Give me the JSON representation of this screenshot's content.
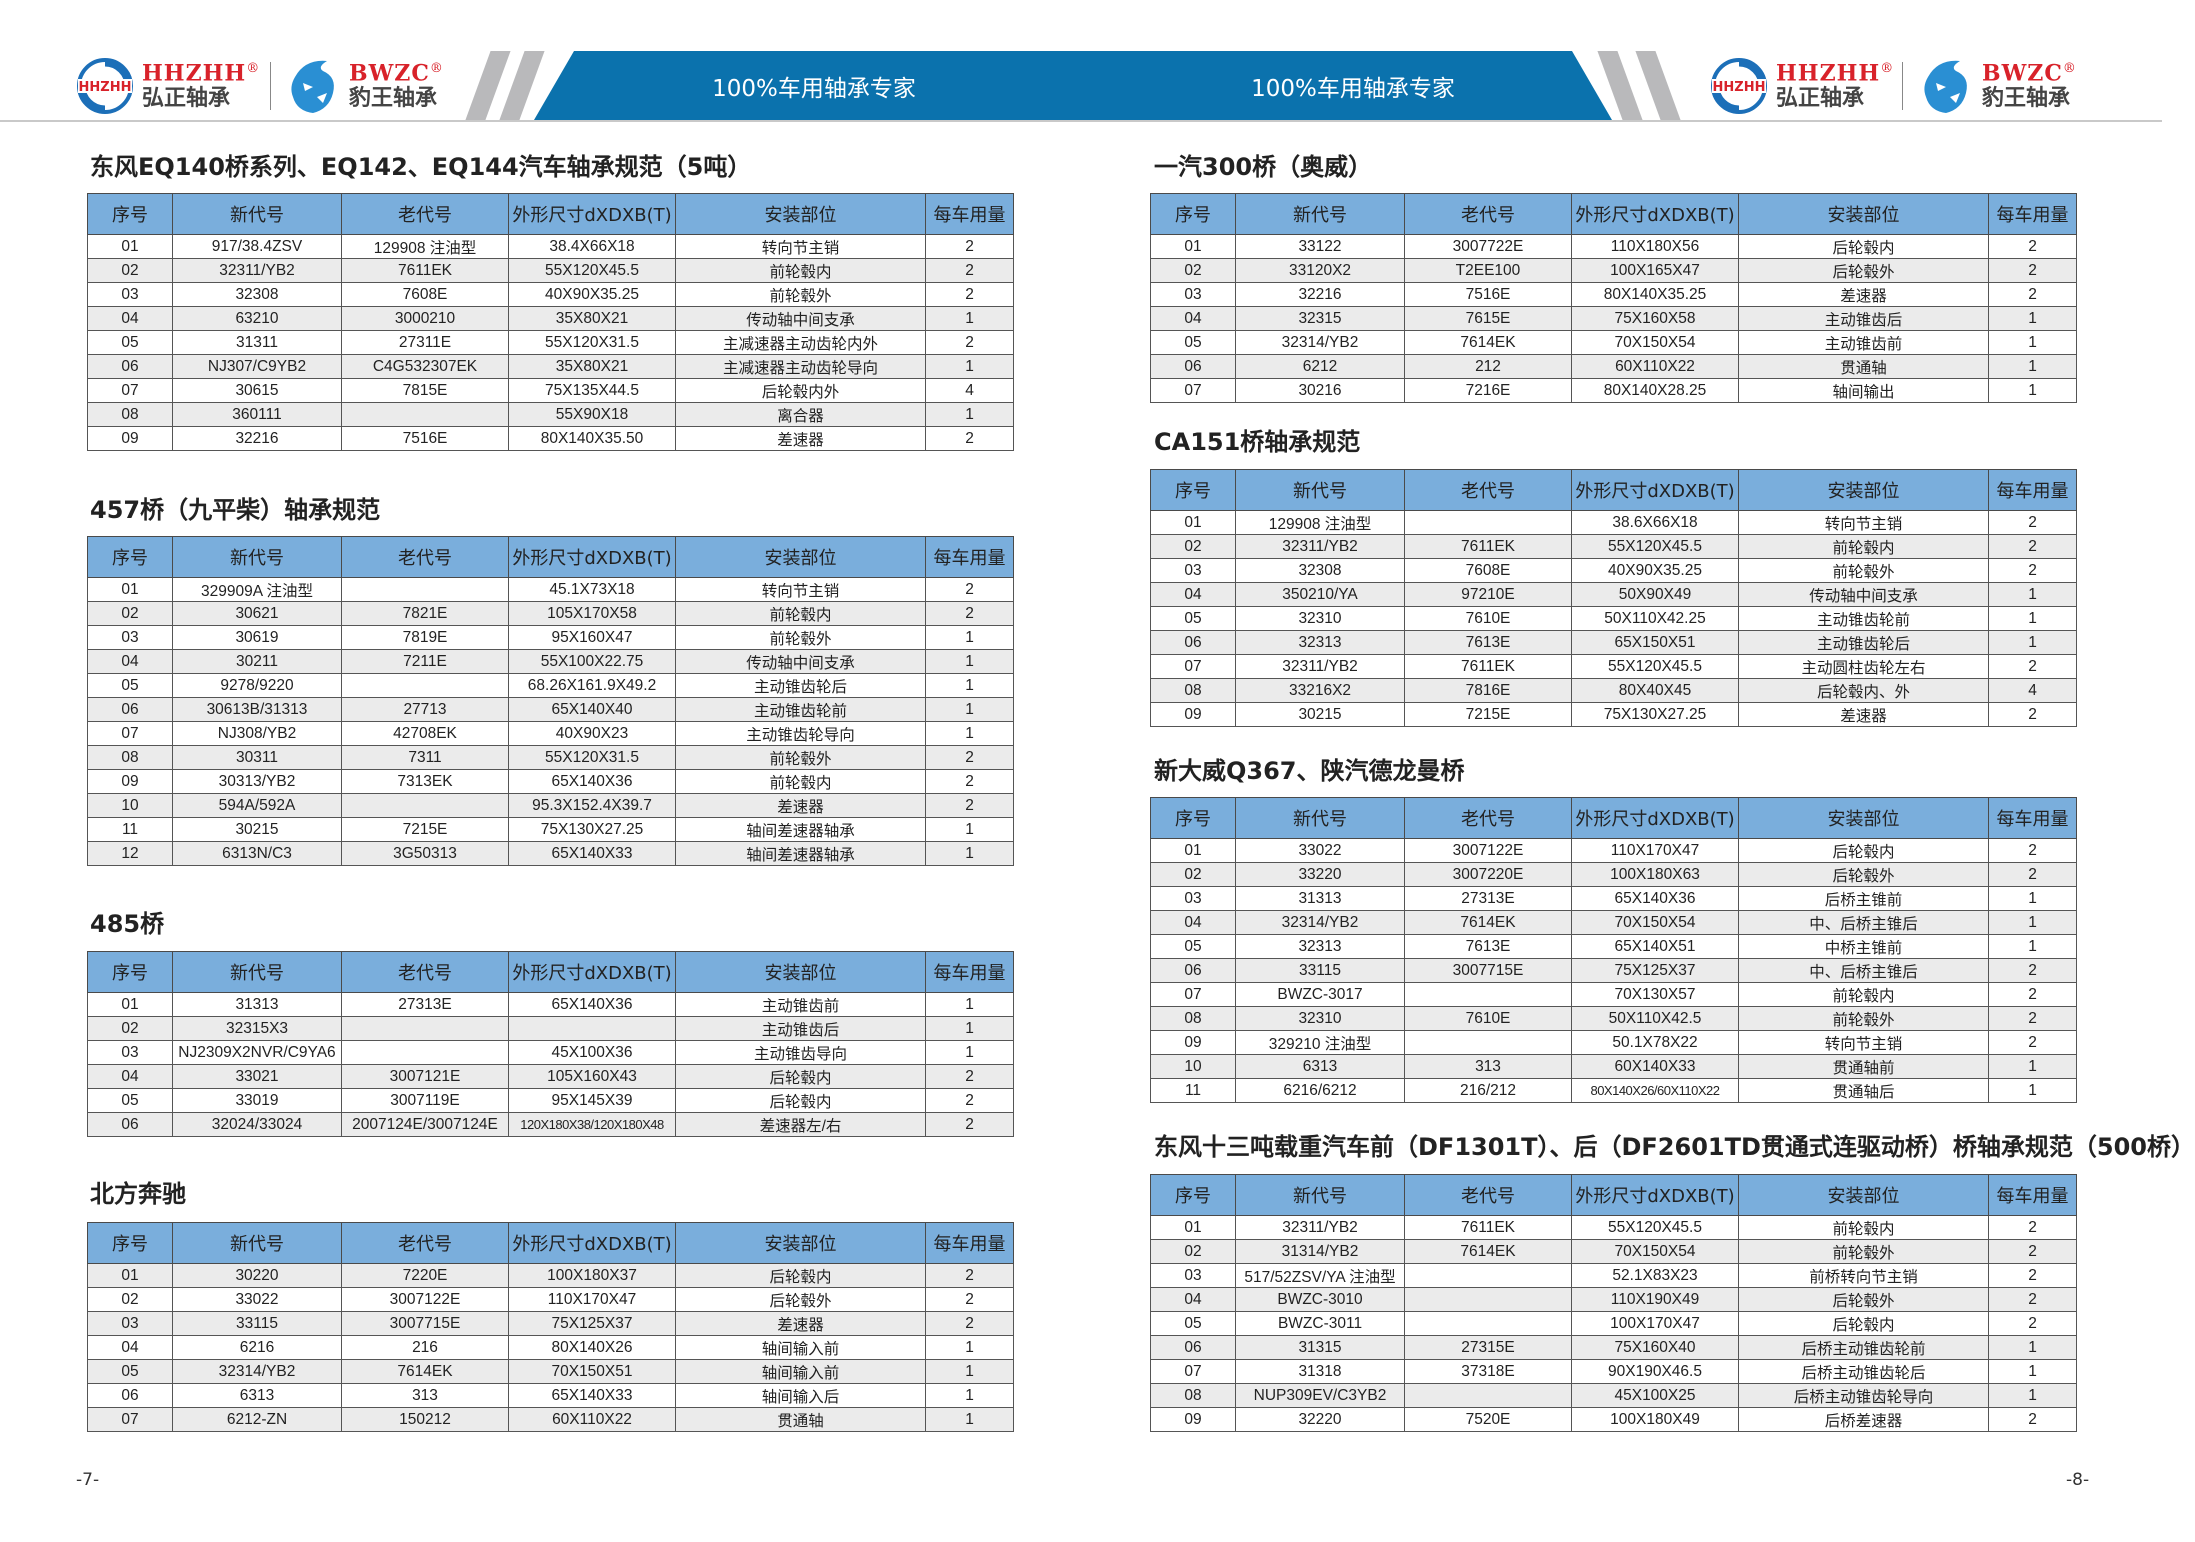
{
  "header": {
    "slogan": "100%车用轴承专家",
    "brand1_en": "HHZHH",
    "brand1_cn": "弘正轴承",
    "brand2_en": "BWZC",
    "brand2_cn": "豹王轴承",
    "registered": "®",
    "accent_color": "#0b72ad",
    "brand_red": "#d8222a"
  },
  "columns": [
    "序号",
    "新代号",
    "老代号",
    "外形尺寸dXDXB(T)",
    "安装部位",
    "每车用量"
  ],
  "left_sections": [
    {
      "title": "东风EQ140桥系列、EQ142、EQ144汽车轴承规范（5吨）",
      "rows": [
        [
          "01",
          "917/38.4ZSV",
          "129908 注油型",
          "38.4X66X18",
          "转向节主销",
          "2"
        ],
        [
          "02",
          "32311/YB2",
          "7611EK",
          "55X120X45.5",
          "前轮毂内",
          "2"
        ],
        [
          "03",
          "32308",
          "7608E",
          "40X90X35.25",
          "前轮毂外",
          "2"
        ],
        [
          "04",
          "63210",
          "3000210",
          "35X80X21",
          "传动轴中间支承",
          "1"
        ],
        [
          "05",
          "31311",
          "27311E",
          "55X120X31.5",
          "主减速器主动齿轮内外",
          "2"
        ],
        [
          "06",
          "NJ307/C9YB2",
          "C4G532307EK",
          "35X80X21",
          "主减速器主动齿轮导向",
          "1"
        ],
        [
          "07",
          "30615",
          "7815E",
          "75X135X44.5",
          "后轮毂内外",
          "4"
        ],
        [
          "08",
          "360111",
          "",
          "55X90X18",
          "离合器",
          "1"
        ],
        [
          "09",
          "32216",
          "7516E",
          "80X140X35.50",
          "差速器",
          "2"
        ]
      ]
    },
    {
      "title": "457桥（九平柴）轴承规范",
      "rows": [
        [
          "01",
          "329909A 注油型",
          "",
          "45.1X73X18",
          "转向节主销",
          "2"
        ],
        [
          "02",
          "30621",
          "7821E",
          "105X170X58",
          "前轮毂内",
          "2"
        ],
        [
          "03",
          "30619",
          "7819E",
          "95X160X47",
          "前轮毂外",
          "1"
        ],
        [
          "04",
          "30211",
          "7211E",
          "55X100X22.75",
          "传动轴中间支承",
          "1"
        ],
        [
          "05",
          "9278/9220",
          "",
          "68.26X161.9X49.2",
          "主动锥齿轮后",
          "1"
        ],
        [
          "06",
          "30613B/31313",
          "27713",
          "65X140X40",
          "主动锥齿轮前",
          "1"
        ],
        [
          "07",
          "NJ308/YB2",
          "42708EK",
          "40X90X23",
          "主动锥齿轮导向",
          "1"
        ],
        [
          "08",
          "30311",
          "7311",
          "55X120X31.5",
          "前轮毂外",
          "2"
        ],
        [
          "09",
          "30313/YB2",
          "7313EK",
          "65X140X36",
          "前轮毂内",
          "2"
        ],
        [
          "10",
          "594A/592A",
          "",
          "95.3X152.4X39.7",
          "差速器",
          "2"
        ],
        [
          "11",
          "30215",
          "7215E",
          "75X130X27.25",
          "轴间差速器轴承",
          "1"
        ],
        [
          "12",
          "6313N/C3",
          "3G50313",
          "65X140X33",
          "轴间差速器轴承",
          "1"
        ]
      ]
    },
    {
      "title": "485桥",
      "rows": [
        [
          "01",
          "31313",
          "27313E",
          "65X140X36",
          "主动锥齿前",
          "1"
        ],
        [
          "02",
          "32315X3",
          "",
          "",
          "主动锥齿后",
          "1"
        ],
        [
          "03",
          "NJ2309X2NVR/C9YA6",
          "",
          "45X100X36",
          "主动锥齿导向",
          "1"
        ],
        [
          "04",
          "33021",
          "3007121E",
          "105X160X43",
          "后轮毂内",
          "2"
        ],
        [
          "05",
          "33019",
          "3007119E",
          "95X145X39",
          "后轮毂内",
          "2"
        ],
        [
          "06",
          "32024/33024",
          "2007124E/3007124E",
          "120X180X38/120X180X48",
          "差速器左/右",
          "2"
        ]
      ]
    },
    {
      "title": "北方奔驰",
      "rows": [
        [
          "01",
          "30220",
          "7220E",
          "100X180X37",
          "后轮毂内",
          "2"
        ],
        [
          "02",
          "33022",
          "3007122E",
          "110X170X47",
          "后轮毂外",
          "2"
        ],
        [
          "03",
          "33115",
          "3007715E",
          "75X125X37",
          "差速器",
          "2"
        ],
        [
          "04",
          "6216",
          "216",
          "80X140X26",
          "轴间输入前",
          "1"
        ],
        [
          "05",
          "32314/YB2",
          "7614EK",
          "70X150X51",
          "轴间输入前",
          "1"
        ],
        [
          "06",
          "6313",
          "313",
          "65X140X33",
          "轴间输入后",
          "1"
        ],
        [
          "07",
          "6212-ZN",
          "150212",
          "60X110X22",
          "贯通轴",
          "1"
        ]
      ]
    }
  ],
  "right_sections": [
    {
      "title": "一汽300桥（奥威）",
      "rows": [
        [
          "01",
          "33122",
          "3007722E",
          "110X180X56",
          "后轮毂内",
          "2"
        ],
        [
          "02",
          "33120X2",
          "T2EE100",
          "100X165X47",
          "后轮毂外",
          "2"
        ],
        [
          "03",
          "32216",
          "7516E",
          "80X140X35.25",
          "差速器",
          "2"
        ],
        [
          "04",
          "32315",
          "7615E",
          "75X160X58",
          "主动锥齿后",
          "1"
        ],
        [
          "05",
          "32314/YB2",
          "7614EK",
          "70X150X54",
          "主动锥齿前",
          "1"
        ],
        [
          "06",
          "6212",
          "212",
          "60X110X22",
          "贯通轴",
          "1"
        ],
        [
          "07",
          "30216",
          "7216E",
          "80X140X28.25",
          "轴间输出",
          "1"
        ]
      ]
    },
    {
      "title": "CA151桥轴承规范",
      "rows": [
        [
          "01",
          "129908 注油型",
          "",
          "38.6X66X18",
          "转向节主销",
          "2"
        ],
        [
          "02",
          "32311/YB2",
          "7611EK",
          "55X120X45.5",
          "前轮毂内",
          "2"
        ],
        [
          "03",
          "32308",
          "7608E",
          "40X90X35.25",
          "前轮毂外",
          "2"
        ],
        [
          "04",
          "350210/YA",
          "97210E",
          "50X90X49",
          "传动轴中间支承",
          "1"
        ],
        [
          "05",
          "32310",
          "7610E",
          "50X110X42.25",
          "主动锥齿轮前",
          "1"
        ],
        [
          "06",
          "32313",
          "7613E",
          "65X150X51",
          "主动锥齿轮后",
          "1"
        ],
        [
          "07",
          "32311/YB2",
          "7611EK",
          "55X120X45.5",
          "主动圆柱齿轮左右",
          "2"
        ],
        [
          "08",
          "33216X2",
          "7816E",
          "80X40X45",
          "后轮毂内、外",
          "4"
        ],
        [
          "09",
          "30215",
          "7215E",
          "75X130X27.25",
          "差速器",
          "2"
        ]
      ]
    },
    {
      "title": "新大威Q367、陕汽德龙曼桥",
      "rows": [
        [
          "01",
          "33022",
          "3007122E",
          "110X170X47",
          "后轮毂内",
          "2"
        ],
        [
          "02",
          "33220",
          "3007220E",
          "100X180X63",
          "后轮毂外",
          "2"
        ],
        [
          "03",
          "31313",
          "27313E",
          "65X140X36",
          "后桥主锥前",
          "1"
        ],
        [
          "04",
          "32314/YB2",
          "7614EK",
          "70X150X54",
          "中、后桥主锥后",
          "1"
        ],
        [
          "05",
          "32313",
          "7613E",
          "65X140X51",
          "中桥主锥前",
          "1"
        ],
        [
          "06",
          "33115",
          "3007715E",
          "75X125X37",
          "中、后桥主锥后",
          "2"
        ],
        [
          "07",
          "BWZC-3017",
          "",
          "70X130X57",
          "前轮毂内",
          "2"
        ],
        [
          "08",
          "32310",
          "7610E",
          "50X110X42.5",
          "前轮毂外",
          "2"
        ],
        [
          "09",
          "329210 注油型",
          "",
          "50.1X78X22",
          "转向节主销",
          "2"
        ],
        [
          "10",
          "6313",
          "313",
          "60X140X33",
          "贯通轴前",
          "1"
        ],
        [
          "11",
          "6216/6212",
          "216/212",
          "80X140X26/60X110X22",
          "贯通轴后",
          "1"
        ]
      ]
    },
    {
      "title": "东风十三吨载重汽车前（DF1301T）、后（DF2601TD贯通式连驱动桥）桥轴承规范（500桥）",
      "rows": [
        [
          "01",
          "32311/YB2",
          "7611EK",
          "55X120X45.5",
          "前轮毂内",
          "2"
        ],
        [
          "02",
          "31314/YB2",
          "7614EK",
          "70X150X54",
          "前轮毂外",
          "2"
        ],
        [
          "03",
          "517/52ZSV/YA 注油型",
          "",
          "52.1X83X23",
          "前桥转向节主销",
          "2"
        ],
        [
          "04",
          "BWZC-3010",
          "",
          "110X190X49",
          "后轮毂外",
          "2"
        ],
        [
          "05",
          "BWZC-3011",
          "",
          "100X170X47",
          "后轮毂内",
          "2"
        ],
        [
          "06",
          "31315",
          "27315E",
          "75X160X40",
          "后桥主动锥齿轮前",
          "1"
        ],
        [
          "07",
          "31318",
          "37318E",
          "90X190X46.5",
          "后桥主动锥齿轮后",
          "1"
        ],
        [
          "08",
          "NUP309EV/C3YB2",
          "",
          "45X100X25",
          "后桥主动锥齿轮导向",
          "1"
        ],
        [
          "09",
          "32220",
          "7520E",
          "100X180X49",
          "后桥差速器",
          "2"
        ]
      ]
    }
  ],
  "footer": {
    "left_page": "-7-",
    "right_page": "-8-"
  }
}
